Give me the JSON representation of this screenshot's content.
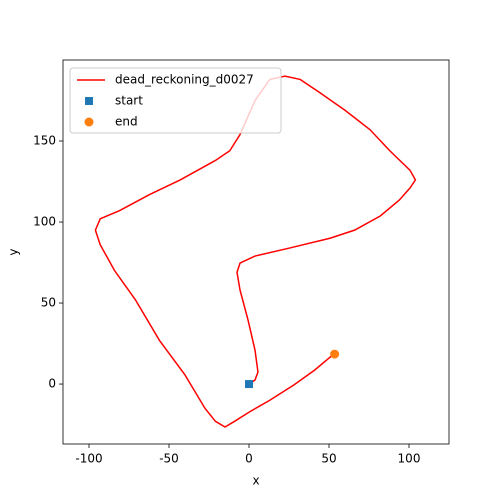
{
  "chart_data": {
    "type": "line",
    "xlabel": "x",
    "ylabel": "y",
    "xlim": [
      -116.25,
      125
    ],
    "ylim": [
      -37,
      200
    ],
    "xticks": [
      -100,
      -50,
      0,
      50,
      100
    ],
    "yticks": [
      0,
      50,
      100,
      150
    ],
    "legend": "upper left",
    "series": [
      {
        "name": "dead_reckoning_d0027",
        "color": "#ff0000",
        "marker": "line",
        "x": [
          0,
          3.75,
          5.6,
          3.75,
          -0.6,
          -5.6,
          -7.5,
          -5.6,
          3.75,
          25.6,
          50.6,
          66,
          82,
          94,
          100.6,
          104,
          100.6,
          88,
          75.6,
          60,
          44,
          32,
          22.5,
          13,
          3.75,
          -5.6,
          -12,
          -21,
          -43,
          -62,
          -81,
          -93,
          -96,
          -93,
          -84,
          -71,
          -56,
          -40,
          -27.5,
          -21,
          -15,
          -9,
          0.6,
          13,
          28,
          41,
          53
        ],
        "values": [
          0,
          2.5,
          7.4,
          21,
          39.5,
          58,
          69,
          74.7,
          79,
          84,
          90,
          95,
          103.7,
          113.6,
          121,
          126,
          132,
          144,
          157,
          169,
          180,
          188,
          190,
          188,
          175,
          154,
          144,
          138,
          126,
          117,
          107,
          102,
          95,
          86,
          70,
          52,
          27,
          5.6,
          -15,
          -23,
          -26.5,
          -23,
          -17,
          -10,
          -0.6,
          8.6,
          18.5
        ]
      },
      {
        "name": "start",
        "color": "#1f77b4",
        "marker": "square",
        "x": [
          0
        ],
        "values": [
          0
        ]
      },
      {
        "name": "end",
        "color": "#ff7f0e",
        "marker": "circle",
        "x": [
          53.5
        ],
        "values": [
          18.5
        ]
      }
    ]
  }
}
